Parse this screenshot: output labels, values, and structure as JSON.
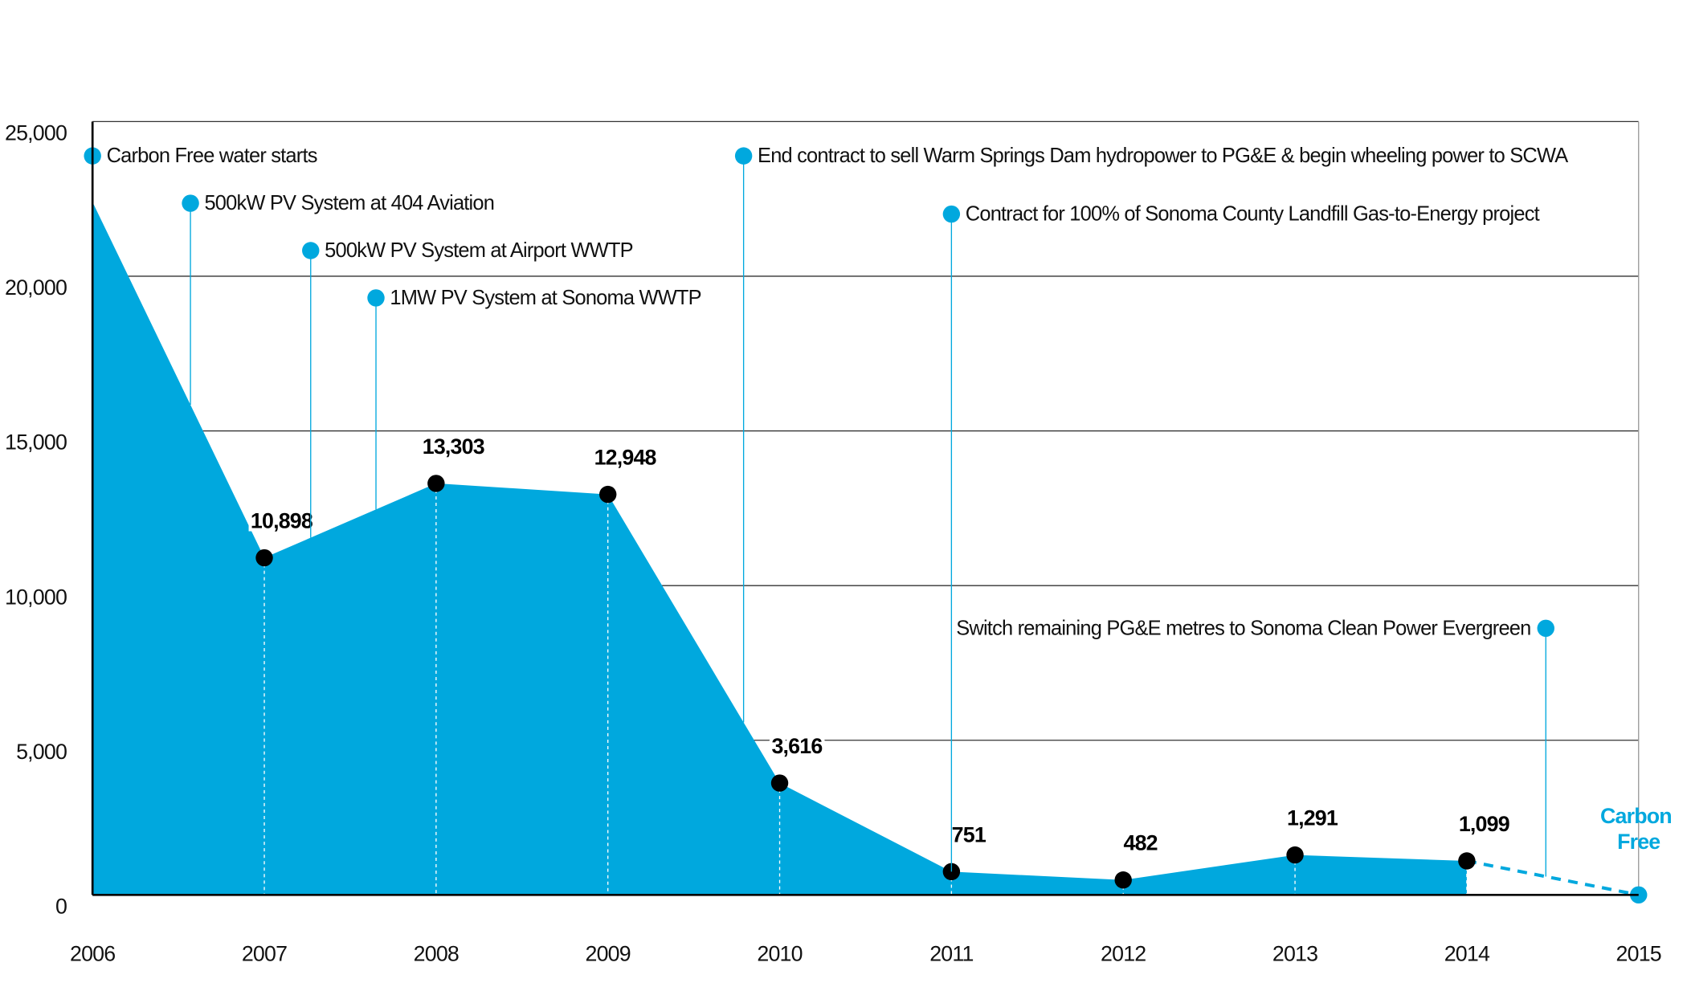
{
  "chart_data": {
    "type": "area",
    "x": [
      2006,
      2007,
      2008,
      2009,
      2010,
      2011,
      2012,
      2013,
      2014,
      2015
    ],
    "values": [
      22400,
      10898,
      13303,
      12948,
      3616,
      751,
      482,
      1291,
      1099,
      0
    ],
    "value_labels": [
      null,
      "10,898",
      "13,303",
      "12,948",
      "3,616",
      "751",
      "482",
      "1,291",
      "1,099",
      null
    ],
    "color": "#00a8de",
    "dashed_last": true,
    "end_label": "Carbon Free",
    "xlim": [
      2006,
      2015
    ],
    "xticks": [
      2006,
      2007,
      2008,
      2009,
      2010,
      2011,
      2012,
      2013,
      2014,
      2015
    ],
    "ylim": [
      0,
      25000
    ],
    "yticks": [
      {
        "value": 0,
        "label": "0"
      },
      {
        "value": 5000,
        "label": "5,000"
      },
      {
        "value": 10000,
        "label": "10,000"
      },
      {
        "value": 15000,
        "label": "15,000"
      },
      {
        "value": 20000,
        "label": "20,000"
      },
      {
        "value": 25000,
        "label": "25,000"
      }
    ],
    "grid": true,
    "annotations": [
      {
        "text": "Carbon Free water starts",
        "x": 2006.0,
        "y": 23890,
        "side": "right"
      },
      {
        "text": "500kW PV System at 404 Aviation",
        "x": 2006.57,
        "y": 22360,
        "side": "right"
      },
      {
        "text": "500kW PV System at Airport WWTP",
        "x": 2007.27,
        "y": 20830,
        "side": "right"
      },
      {
        "text": "1MW PV System at Sonoma WWTP",
        "x": 2007.65,
        "y": 19300,
        "side": "right"
      },
      {
        "text": "End contract to sell Warm Springs Dam hydropower to PG&E & begin wheeling power to SCWA",
        "x": 2009.79,
        "y": 23890,
        "side": "right"
      },
      {
        "text": "Contract for 100% of Sonoma County Landfill Gas-to-Energy project",
        "x": 2011.0,
        "y": 22010,
        "side": "right"
      },
      {
        "text": "Switch remaining PG&E metres to Sonoma Clean Power Evergreen",
        "x": 2014.46,
        "y": 8620,
        "side": "left"
      }
    ]
  }
}
